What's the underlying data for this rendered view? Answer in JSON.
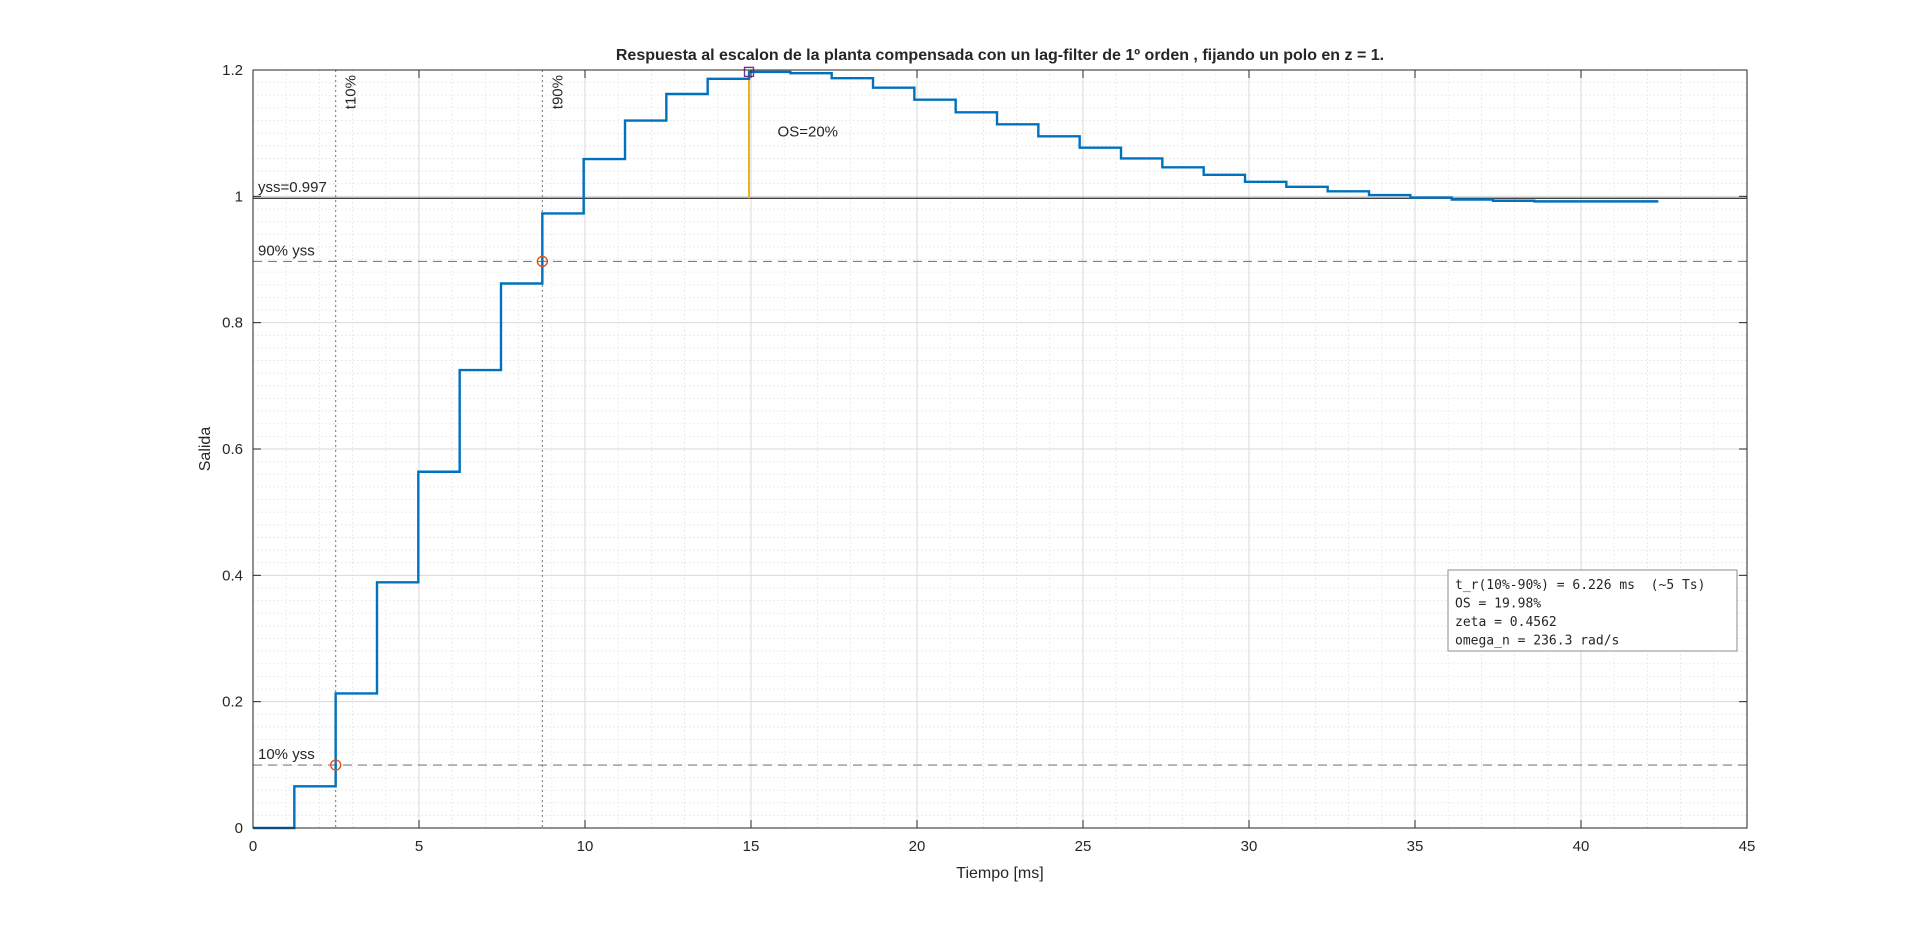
{
  "chart_data": {
    "type": "line",
    "title": "Respuesta al escalon de la planta compensada con un lag-filter de 1º orden , fijando un polo en z = 1.",
    "xlabel": "Tiempo [ms]",
    "ylabel": "Salida",
    "xlim": [
      0,
      45
    ],
    "ylim": [
      0,
      1.2
    ],
    "xticks": [
      0,
      5,
      10,
      15,
      20,
      25,
      30,
      35,
      40,
      45
    ],
    "yticks": [
      0,
      0.2,
      0.4,
      0.6,
      0.8,
      1,
      1.2
    ],
    "xtick_labels": [
      "0",
      "5",
      "10",
      "15",
      "20",
      "25",
      "30",
      "35",
      "40",
      "45"
    ],
    "ytick_labels": [
      "0",
      "0.2",
      "0.4",
      "0.6",
      "0.8",
      "1",
      "1.2"
    ],
    "grid": true,
    "minor_grid": true,
    "series": [
      {
        "style": "stairs",
        "color": "#0072BD",
        "x": [
          0,
          1.245,
          2.49,
          3.735,
          4.98,
          6.225,
          7.47,
          8.715,
          9.96,
          11.205,
          12.45,
          13.695,
          14.94,
          16.185,
          17.43,
          18.675,
          19.92,
          21.165,
          22.41,
          23.655,
          24.9,
          26.145,
          27.39,
          28.635,
          29.88,
          31.125,
          32.37,
          33.615,
          34.86,
          36.105,
          37.35,
          38.595,
          39.84,
          41.085,
          42.33
        ],
        "y": [
          0,
          0.066,
          0.213,
          0.389,
          0.564,
          0.725,
          0.862,
          0.973,
          1.059,
          1.12,
          1.162,
          1.186,
          1.197,
          1.195,
          1.187,
          1.172,
          1.153,
          1.133,
          1.114,
          1.095,
          1.077,
          1.06,
          1.046,
          1.034,
          1.023,
          1.015,
          1.008,
          1.002,
          0.998,
          0.995,
          0.993,
          0.992,
          0.992,
          0.992,
          0.992
        ]
      }
    ],
    "reference_lines": [
      {
        "kind": "horizontal",
        "y": 0.997,
        "style": "solid",
        "color": "#262626",
        "label": "yss=0.997"
      },
      {
        "kind": "horizontal",
        "y": 0.897,
        "style": "dashed",
        "color": "#7f7f7f",
        "label": "90% yss"
      },
      {
        "kind": "horizontal",
        "y": 0.0997,
        "style": "dashed",
        "color": "#7f7f7f",
        "label": "10% yss"
      },
      {
        "kind": "vertical",
        "x": 2.49,
        "style": "dotted",
        "color": "#7f7f7f",
        "label": "t10%"
      },
      {
        "kind": "vertical",
        "x": 8.716,
        "style": "dotted",
        "color": "#7f7f7f",
        "label": "t90%"
      }
    ],
    "overshoot": {
      "x": 14.94,
      "y_from": 0.997,
      "y_to": 1.197,
      "color": "#EDB120",
      "label": "OS=20%",
      "label_x": 15.8,
      "label_y": 1.095
    },
    "markers": [
      {
        "x": 2.49,
        "y": 0.0997,
        "shape": "circle",
        "color": "#D95319"
      },
      {
        "x": 8.716,
        "y": 0.897,
        "shape": "circle",
        "color": "#D95319"
      },
      {
        "x": 14.94,
        "y": 1.197,
        "shape": "square",
        "color": "#7E2F8E"
      }
    ],
    "annotation_box": {
      "placement": "lower-right",
      "lines": [
        "t_r(10%-90%) = 6.226 ms  (~5 Ts)",
        "OS = 19.98%",
        "zeta = 0.4562",
        "omega_n = 236.3 rad/s"
      ]
    }
  }
}
